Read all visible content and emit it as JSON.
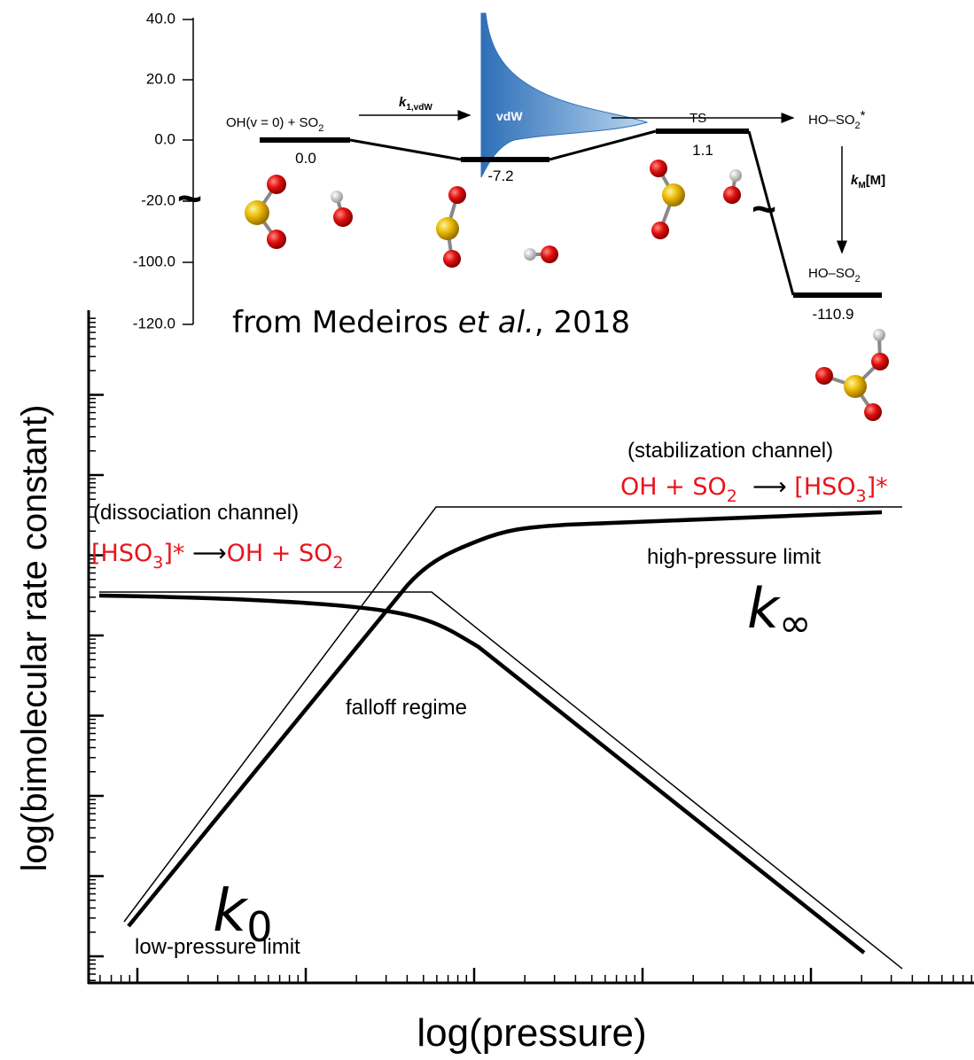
{
  "inset": {
    "y_tick_labels": [
      "40.0",
      "20.0",
      "0.0",
      "-20.0",
      "-100.0",
      "-120.0"
    ],
    "reactant": [
      "OH(v = 0) + SO",
      "2"
    ],
    "rate_vdw": [
      "k",
      "1,vdW"
    ],
    "well_label": "vdW",
    "ts_label": "TS",
    "adduct_excited": [
      "HO–SO",
      "2",
      "*"
    ],
    "rate_m": [
      "k",
      "M",
      "[M]"
    ],
    "product": [
      "HO–SO",
      "2"
    ],
    "levels": [
      "0.0",
      "-7.2",
      "1.1",
      "-110.9"
    ],
    "source": [
      "from Medeiros ",
      "et al.",
      ", 2018"
    ]
  },
  "plot": {
    "y_axis_title": "log(bimolecular rate constant)",
    "x_axis_title": "log(pressure)",
    "dissociation": {
      "channel": "(dissociation channel)",
      "reaction": [
        "[HSO",
        "3",
        "]* ",
        "⟶",
        "OH + SO",
        "2"
      ]
    },
    "stabilization": {
      "channel": "(stabilization channel)",
      "reaction": [
        "OH + SO",
        "2",
        "  ⟶ ",
        "[HSO",
        "3",
        "]*"
      ]
    },
    "high_limit": "high-pressure limit",
    "k_inf": [
      "k",
      "∞"
    ],
    "falloff": "falloff regime",
    "k_zero": [
      "k",
      "0"
    ],
    "low_limit": "low-pressure limit"
  }
}
